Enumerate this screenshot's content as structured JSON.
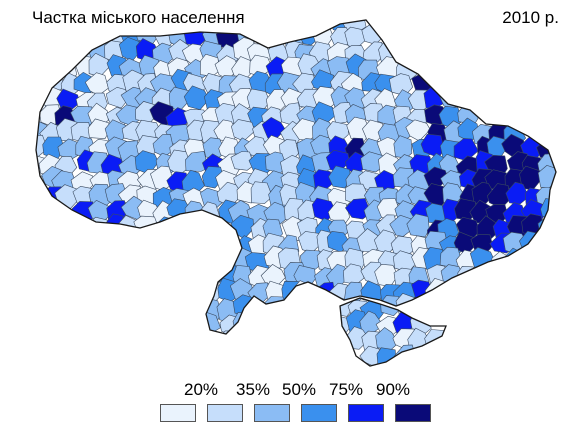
{
  "title": "Частка міського населення",
  "year": "2010 р.",
  "legend": {
    "thresholds": [
      "20%",
      "35%",
      "50%",
      "75%",
      "90%"
    ],
    "colors": [
      "#eaf3fd",
      "#c6defb",
      "#8bbcf4",
      "#3a90ee",
      "#0a1cf5",
      "#0a0a78"
    ]
  },
  "map": {
    "border_color": "#1a1a1a",
    "district_line_color": "#3a4a60"
  }
}
